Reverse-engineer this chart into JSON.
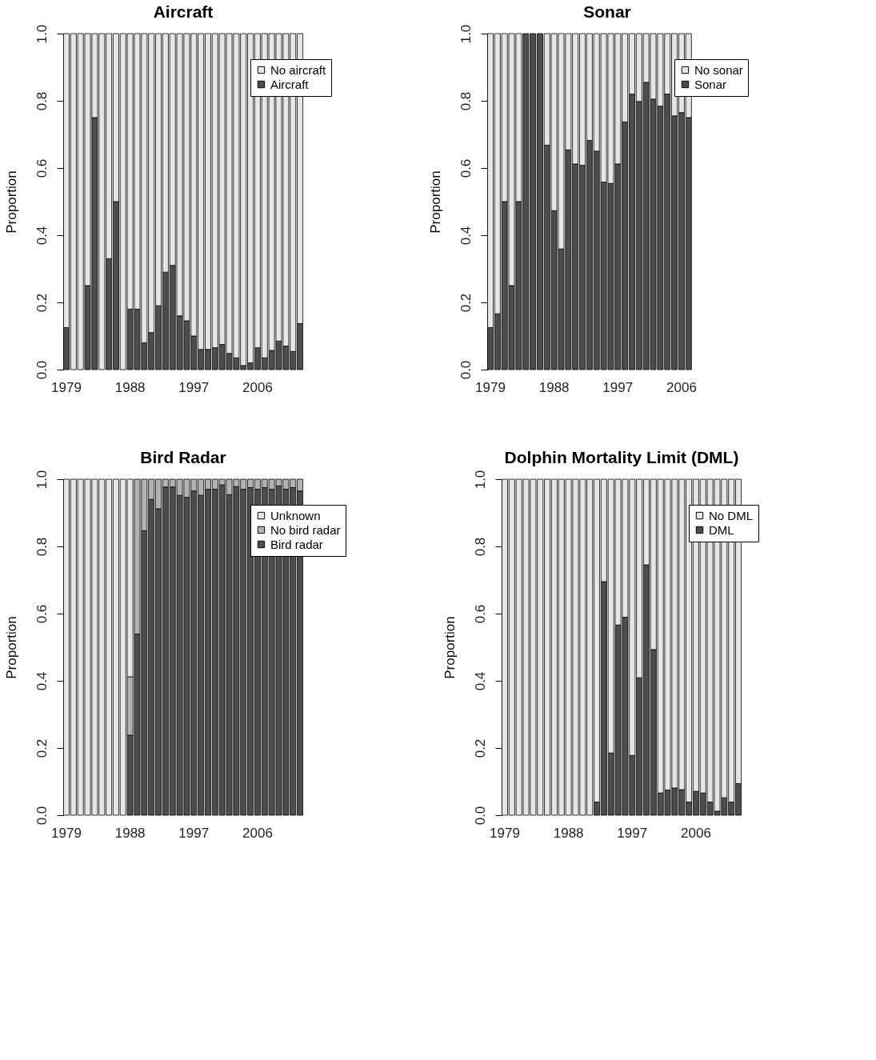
{
  "chart_data": [
    {
      "type": "bar",
      "title": "Aircraft",
      "ylabel": "Proportion",
      "stacked": true,
      "legend": "top right",
      "grid": false,
      "categories": [
        "1979",
        null,
        null,
        null,
        null,
        null,
        null,
        null,
        null,
        "1988",
        null,
        null,
        null,
        null,
        null,
        null,
        null,
        null,
        "1997",
        null,
        null,
        null,
        null,
        null,
        null,
        null,
        null,
        "2006",
        null,
        null,
        null,
        null,
        null,
        null
      ],
      "ylim": [
        0,
        1
      ],
      "yticks": [
        {
          "value": 0,
          "label": "0.0"
        },
        {
          "value": 0.2,
          "label": "0.2"
        },
        {
          "value": 0.4,
          "label": "0.4"
        },
        {
          "value": 0.6,
          "label": "0.6"
        },
        {
          "value": 0.8,
          "label": "0.8"
        },
        {
          "value": 1,
          "label": "1.0"
        }
      ],
      "series": [
        {
          "name": "Aircraft",
          "color": "#4d4d4d",
          "values": [
            0.125,
            0,
            0,
            0.25,
            0.75,
            0,
            0.33,
            0.5,
            0,
            0.18,
            0.18,
            0.08,
            0.11,
            0.19,
            0.29,
            0.31,
            0.16,
            0.145,
            0.1,
            0.06,
            0.06,
            0.065,
            0.075,
            0.048,
            0.035,
            0.012,
            0.02,
            0.065,
            0.035,
            0.057,
            0.085,
            0.07,
            0.054,
            0.137
          ]
        },
        {
          "name": "No aircraft",
          "color": "#e6e6e6",
          "values": [
            0.875,
            1,
            1,
            0.75,
            0.25,
            1,
            0.67,
            0.5,
            1,
            0.82,
            0.82,
            0.92,
            0.89,
            0.81,
            0.71,
            0.69,
            0.84,
            0.855,
            0.9,
            0.94,
            0.94,
            0.935,
            0.925,
            0.952,
            0.965,
            0.988,
            0.98,
            0.935,
            0.965,
            0.943,
            0.915,
            0.93,
            0.946,
            0.863
          ]
        }
      ]
    },
    {
      "type": "bar",
      "title": "Sonar",
      "ylabel": "Proportion",
      "stacked": true,
      "legend": "top right",
      "grid": false,
      "categories": [
        "1979",
        null,
        null,
        null,
        null,
        null,
        null,
        null,
        null,
        "1988",
        null,
        null,
        null,
        null,
        null,
        null,
        null,
        null,
        "1997",
        null,
        null,
        null,
        null,
        null,
        null,
        null,
        null,
        "2006",
        null,
        null,
        null,
        null,
        null,
        null
      ],
      "ylim": [
        0,
        1
      ],
      "yticks": [
        {
          "value": 0,
          "label": "0.0"
        },
        {
          "value": 0.2,
          "label": "0.2"
        },
        {
          "value": 0.4,
          "label": "0.4"
        },
        {
          "value": 0.6,
          "label": "0.6"
        },
        {
          "value": 0.8,
          "label": "0.8"
        },
        {
          "value": 1,
          "label": "1.0"
        }
      ],
      "series": [
        {
          "name": "Sonar",
          "color": "#4d4d4d",
          "values": [
            0.125,
            0.166,
            0.5,
            0.25,
            0.5,
            1,
            1,
            1,
            0.668,
            0.473,
            0.359,
            0.654,
            0.612,
            0.608,
            0.682,
            0.65,
            0.558,
            0.554,
            0.612,
            0.737,
            0.82,
            0.798,
            0.855,
            0.805,
            0.784,
            0.82,
            0.755,
            0.765,
            0.75,
            null,
            null,
            null,
            null,
            null
          ]
        },
        {
          "name": "No sonar",
          "color": "#e6e6e6",
          "values": [
            0.875,
            0.834,
            0.5,
            0.75,
            0.5,
            0,
            0,
            0,
            0.332,
            0.527,
            0.641,
            0.346,
            0.388,
            0.392,
            0.318,
            0.35,
            0.442,
            0.446,
            0.388,
            0.263,
            0.18,
            0.202,
            0.145,
            0.195,
            0.216,
            0.18,
            0.245,
            0.235,
            0.25,
            null,
            null,
            null,
            null,
            null
          ]
        }
      ]
    },
    {
      "type": "bar",
      "title": "Bird Radar",
      "ylabel": "Proportion",
      "stacked": true,
      "legend": "top right",
      "grid": false,
      "categories": [
        "1979",
        null,
        null,
        null,
        null,
        null,
        null,
        null,
        null,
        "1988",
        null,
        null,
        null,
        null,
        null,
        null,
        null,
        null,
        "1997",
        null,
        null,
        null,
        null,
        null,
        null,
        null,
        null,
        "2006",
        null,
        null,
        null,
        null,
        null,
        null
      ],
      "ylim": [
        0,
        1
      ],
      "yticks": [
        {
          "value": 0,
          "label": "0.0"
        },
        {
          "value": 0.2,
          "label": "0.2"
        },
        {
          "value": 0.4,
          "label": "0.4"
        },
        {
          "value": 0.6,
          "label": "0.6"
        },
        {
          "value": 0.8,
          "label": "0.8"
        },
        {
          "value": 1,
          "label": "1.0"
        }
      ],
      "series": [
        {
          "name": "Bird radar",
          "color": "#4d4d4d",
          "values": [
            0,
            0,
            0,
            0,
            0,
            0,
            0,
            0,
            0,
            0.238,
            0.539,
            0.847,
            0.94,
            0.912,
            0.977,
            0.977,
            0.952,
            0.946,
            0.965,
            0.952,
            0.97,
            0.97,
            0.983,
            0.954,
            0.978,
            0.97,
            0.975,
            0.97,
            0.975,
            0.97,
            0.98,
            0.97,
            0.975,
            0.965
          ]
        },
        {
          "name": "No bird radar",
          "color": "#b3b3b3",
          "values": [
            0,
            0,
            0,
            0,
            0,
            0,
            0,
            0,
            0,
            0.174,
            0.461,
            0.153,
            0.06,
            0.088,
            0.023,
            0.023,
            0.048,
            0.054,
            0.035,
            0.048,
            0.03,
            0.03,
            0.017,
            0.046,
            0.022,
            0.03,
            0.025,
            0.03,
            0.025,
            0.03,
            0.02,
            0.03,
            0.025,
            0.035
          ]
        },
        {
          "name": "Unknown",
          "color": "#e6e6e6",
          "values": [
            1,
            1,
            1,
            1,
            1,
            1,
            1,
            1,
            1,
            0.588,
            0,
            0,
            0,
            0,
            0,
            0,
            0,
            0,
            0,
            0,
            0,
            0,
            0,
            0,
            0,
            0,
            0,
            0,
            0,
            0,
            0,
            0,
            0,
            0
          ]
        }
      ]
    },
    {
      "type": "bar",
      "title": "Dolphin Mortality Limit (DML)",
      "ylabel": "Proportion",
      "stacked": true,
      "legend": "top right",
      "grid": false,
      "categories": [
        "1979",
        null,
        null,
        null,
        null,
        null,
        null,
        null,
        null,
        "1988",
        null,
        null,
        null,
        null,
        null,
        null,
        null,
        null,
        "1997",
        null,
        null,
        null,
        null,
        null,
        null,
        null,
        null,
        "2006",
        null,
        null,
        null,
        null,
        null,
        null
      ],
      "ylim": [
        0,
        1
      ],
      "yticks": [
        {
          "value": 0,
          "label": "0.0"
        },
        {
          "value": 0.2,
          "label": "0.2"
        },
        {
          "value": 0.4,
          "label": "0.4"
        },
        {
          "value": 0.6,
          "label": "0.6"
        },
        {
          "value": 0.8,
          "label": "0.8"
        },
        {
          "value": 1,
          "label": "1.0"
        }
      ],
      "series": [
        {
          "name": "DML",
          "color": "#4d4d4d",
          "values": [
            0,
            0,
            0,
            0,
            0,
            0,
            0,
            0,
            0,
            0,
            0,
            0,
            0,
            0.039,
            0.695,
            0.185,
            0.566,
            0.589,
            0.178,
            0.409,
            0.745,
            0.493,
            0.066,
            0.075,
            0.081,
            0.076,
            0.039,
            0.071,
            0.066,
            0.039,
            0.012,
            0.052,
            0.039,
            0.094
          ]
        },
        {
          "name": "No DML",
          "color": "#e6e6e6",
          "values": [
            1,
            1,
            1,
            1,
            1,
            1,
            1,
            1,
            1,
            1,
            1,
            1,
            1,
            0.961,
            0.305,
            0.815,
            0.434,
            0.411,
            0.822,
            0.591,
            0.255,
            0.507,
            0.934,
            0.925,
            0.919,
            0.924,
            0.961,
            0.929,
            0.934,
            0.961,
            0.988,
            0.948,
            0.961,
            0.906
          ]
        }
      ]
    }
  ]
}
